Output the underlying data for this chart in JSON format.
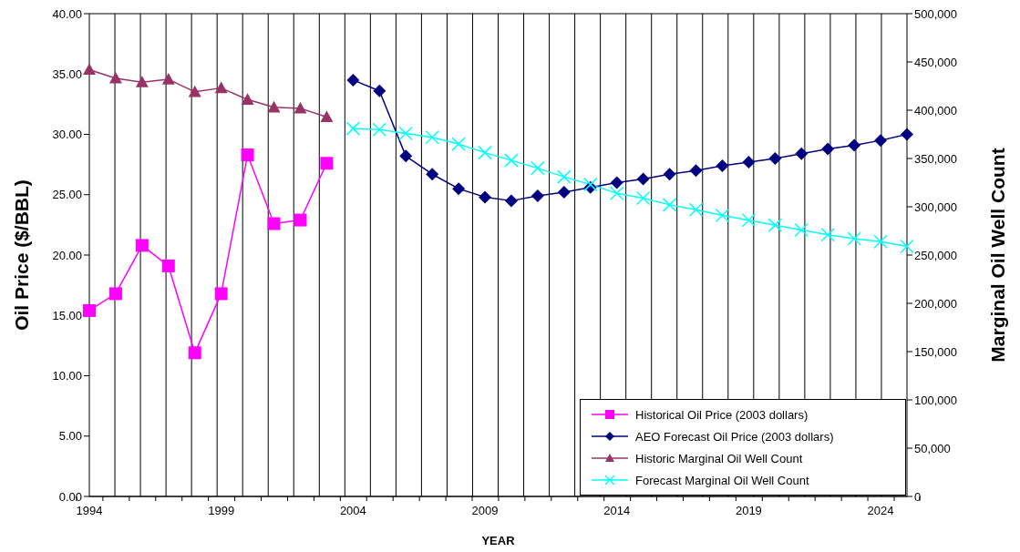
{
  "chart_data": {
    "type": "line",
    "xlabel": "YEAR",
    "ylabel": "Oil Price ($/BBL)",
    "y2label": "Marginal Oil Well Count",
    "categories": [
      "1994",
      null,
      null,
      null,
      null,
      "1999",
      null,
      null,
      null,
      null,
      "2004",
      null,
      null,
      null,
      null,
      "2009",
      null,
      null,
      null,
      null,
      "2014",
      null,
      null,
      null,
      null,
      "2019",
      null,
      null,
      null,
      null,
      "2024",
      null
    ],
    "series": [
      {
        "name": "Historical Oil Price (2003 dollars)",
        "color": "#ff00ff",
        "marker": "square",
        "values": [
          15.4,
          16.8,
          20.8,
          19.1,
          11.9,
          16.8,
          28.3,
          22.6,
          22.9,
          27.6,
          null,
          null,
          null,
          null,
          null,
          null,
          null,
          null,
          null,
          null,
          null,
          null,
          null,
          null,
          null,
          null,
          null,
          null,
          null,
          null,
          null,
          null
        ]
      },
      {
        "name": "AEO Forecast Oil Price (2003 dollars)",
        "color": "#000080",
        "marker": "diamond",
        "values": [
          null,
          null,
          null,
          null,
          null,
          null,
          null,
          null,
          null,
          null,
          34.5,
          33.6,
          28.2,
          26.7,
          25.5,
          24.8,
          24.5,
          24.9,
          25.2,
          25.6,
          26.0,
          26.3,
          26.7,
          27.0,
          27.4,
          27.7,
          28.0,
          28.4,
          28.8,
          29.1,
          29.5,
          30.0
        ]
      },
      {
        "name": "Historic Marginal Oil Well Count",
        "color": "#993366",
        "marker": "triangle",
        "axis": "y2",
        "values": [
          442000,
          433000,
          429000,
          432000,
          419000,
          423000,
          411000,
          403000,
          402000,
          393000,
          null,
          null,
          null,
          null,
          null,
          null,
          null,
          null,
          null,
          null,
          null,
          null,
          null,
          null,
          null,
          null,
          null,
          null,
          null,
          null,
          null,
          null
        ]
      },
      {
        "name": "Forecast Marginal Oil Well Count",
        "color": "#00ffff",
        "marker": "cross",
        "axis": "y2",
        "values": [
          null,
          null,
          null,
          null,
          null,
          null,
          null,
          null,
          null,
          null,
          381000,
          380000,
          376000,
          372000,
          365000,
          356000,
          348000,
          340000,
          331000,
          323000,
          314000,
          309000,
          302000,
          297000,
          291000,
          286000,
          281000,
          276000,
          271000,
          267000,
          264000,
          259000
        ]
      }
    ],
    "ylim": [
      0,
      40
    ],
    "yticks": [
      {
        "value": 0,
        "label": "0.00"
      },
      {
        "value": 5,
        "label": "5.00"
      },
      {
        "value": 10,
        "label": "10.00"
      },
      {
        "value": 15,
        "label": "15.00"
      },
      {
        "value": 20,
        "label": "20.00"
      },
      {
        "value": 25,
        "label": "25.00"
      },
      {
        "value": 30,
        "label": "30.00"
      },
      {
        "value": 35,
        "label": "35.00"
      },
      {
        "value": 40,
        "label": "40.00"
      }
    ],
    "y2lim": [
      0,
      500000
    ],
    "y2ticks": [
      0,
      {
        "value": 50000,
        "label": "50,000"
      },
      {
        "value": 100000,
        "label": "100,000"
      },
      {
        "value": 150000,
        "label": "150,000"
      },
      {
        "value": 200000,
        "label": "200,000"
      },
      {
        "value": 250000,
        "label": "250,000"
      },
      {
        "value": 300000,
        "label": "300,000"
      },
      {
        "value": 350000,
        "label": "350,000"
      },
      {
        "value": 400000,
        "label": "400,000"
      },
      {
        "value": 450000,
        "label": "450,000"
      },
      {
        "value": 500000,
        "label": "500,000"
      }
    ],
    "grid": true,
    "legend": "bottom right",
    "line_style": "solid"
  }
}
